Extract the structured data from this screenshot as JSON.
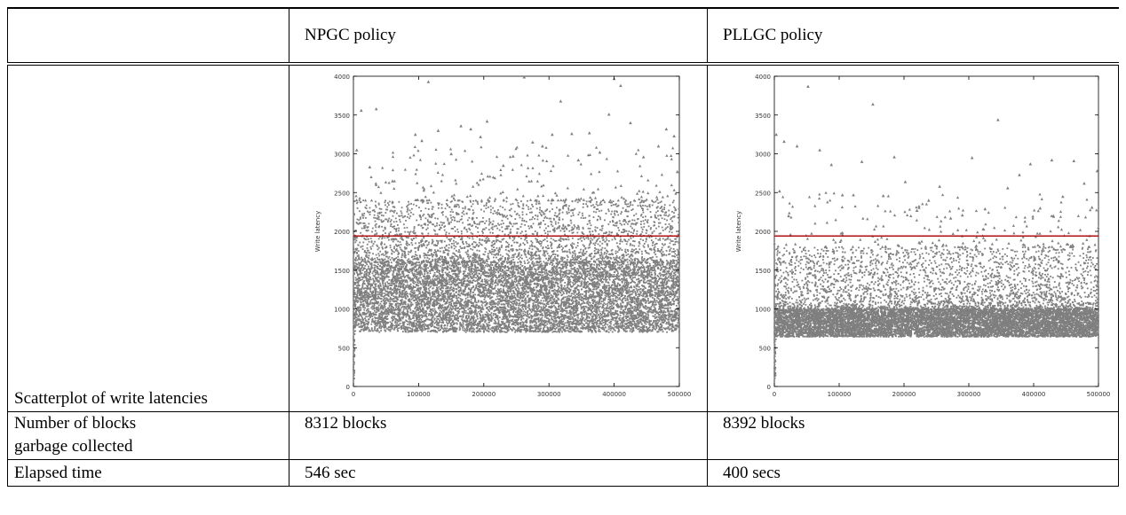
{
  "table": {
    "header": {
      "col1": "",
      "col2": "NPGC policy",
      "col3": "PLLGC policy"
    },
    "rows": [
      {
        "label": "Scatterplot of write latencies",
        "npgc": "",
        "pllgc": ""
      },
      {
        "label_line1": "Number of blocks",
        "label_line2": "garbage collected",
        "npgc": "8312 blocks",
        "pllgc": "8392 blocks"
      },
      {
        "label": "Elapsed time",
        "npgc": "546 sec",
        "pllgc": "400 secs"
      }
    ]
  },
  "chart_data": [
    {
      "type": "scatter",
      "ylabel": "Write latency",
      "xlim": [
        0,
        500000
      ],
      "ylim": [
        0,
        4000
      ],
      "xticks": [
        "0",
        "100000",
        "200000",
        "300000",
        "400000",
        "500000"
      ],
      "yticks": [
        "0",
        "500",
        "1000",
        "1500",
        "2000",
        "2500",
        "3000",
        "3500",
        "4000"
      ],
      "reference_line": 1940,
      "point_color": "#7f7f7f",
      "line_color": "#b01010",
      "dense_band": [
        700,
        1600
      ],
      "sparse_band": [
        1600,
        2400
      ],
      "outlier_points": [
        [
          5000,
          3050
        ],
        [
          12000,
          3560
        ],
        [
          25000,
          2830
        ],
        [
          35000,
          3580
        ],
        [
          60000,
          2650
        ],
        [
          95000,
          3250
        ],
        [
          105000,
          3170
        ],
        [
          115000,
          3930
        ],
        [
          130000,
          3300
        ],
        [
          150000,
          3000
        ],
        [
          165000,
          3360
        ],
        [
          180000,
          3320
        ],
        [
          195000,
          3220
        ],
        [
          205000,
          3420
        ],
        [
          230000,
          2850
        ],
        [
          245000,
          2970
        ],
        [
          262000,
          3990
        ],
        [
          275000,
          3150
        ],
        [
          290000,
          3100
        ],
        [
          305000,
          3250
        ],
        [
          318000,
          3680
        ],
        [
          335000,
          3260
        ],
        [
          345000,
          2920
        ],
        [
          362000,
          3270
        ],
        [
          378000,
          3020
        ],
        [
          392000,
          3510
        ],
        [
          400000,
          3970
        ],
        [
          410000,
          3880
        ],
        [
          425000,
          3400
        ],
        [
          445000,
          2960
        ],
        [
          468000,
          3100
        ],
        [
          480000,
          3320
        ],
        [
          492000,
          3230
        ],
        [
          497000,
          2770
        ]
      ]
    },
    {
      "type": "scatter",
      "ylabel": "Write latency",
      "xlim": [
        0,
        500000
      ],
      "ylim": [
        0,
        4000
      ],
      "xticks": [
        "0",
        "100000",
        "200000",
        "300000",
        "400000",
        "500000"
      ],
      "yticks": [
        "0",
        "500",
        "1000",
        "1500",
        "2000",
        "2500",
        "3000",
        "3500",
        "4000"
      ],
      "reference_line": 1940,
      "point_color": "#7f7f7f",
      "line_color": "#b01010",
      "dense_band": [
        640,
        1000
      ],
      "sparse_band": [
        1000,
        1800
      ],
      "outlier_points": [
        [
          3000,
          3250
        ],
        [
          8000,
          2520
        ],
        [
          15000,
          3160
        ],
        [
          22000,
          2200
        ],
        [
          35000,
          3100
        ],
        [
          52000,
          3870
        ],
        [
          70000,
          3050
        ],
        [
          88000,
          2860
        ],
        [
          105000,
          2470
        ],
        [
          122000,
          2470
        ],
        [
          135000,
          2900
        ],
        [
          152000,
          3640
        ],
        [
          168000,
          2460
        ],
        [
          185000,
          2960
        ],
        [
          202000,
          2640
        ],
        [
          220000,
          2270
        ],
        [
          238000,
          2400
        ],
        [
          255000,
          2580
        ],
        [
          272000,
          2170
        ],
        [
          290000,
          2210
        ],
        [
          305000,
          2950
        ],
        [
          325000,
          2290
        ],
        [
          345000,
          3440
        ],
        [
          360000,
          2560
        ],
        [
          378000,
          2730
        ],
        [
          395000,
          2870
        ],
        [
          410000,
          2300
        ],
        [
          428000,
          2920
        ],
        [
          445000,
          2450
        ],
        [
          462000,
          2910
        ],
        [
          478000,
          2620
        ],
        [
          490000,
          2310
        ],
        [
          498000,
          2780
        ]
      ]
    }
  ]
}
